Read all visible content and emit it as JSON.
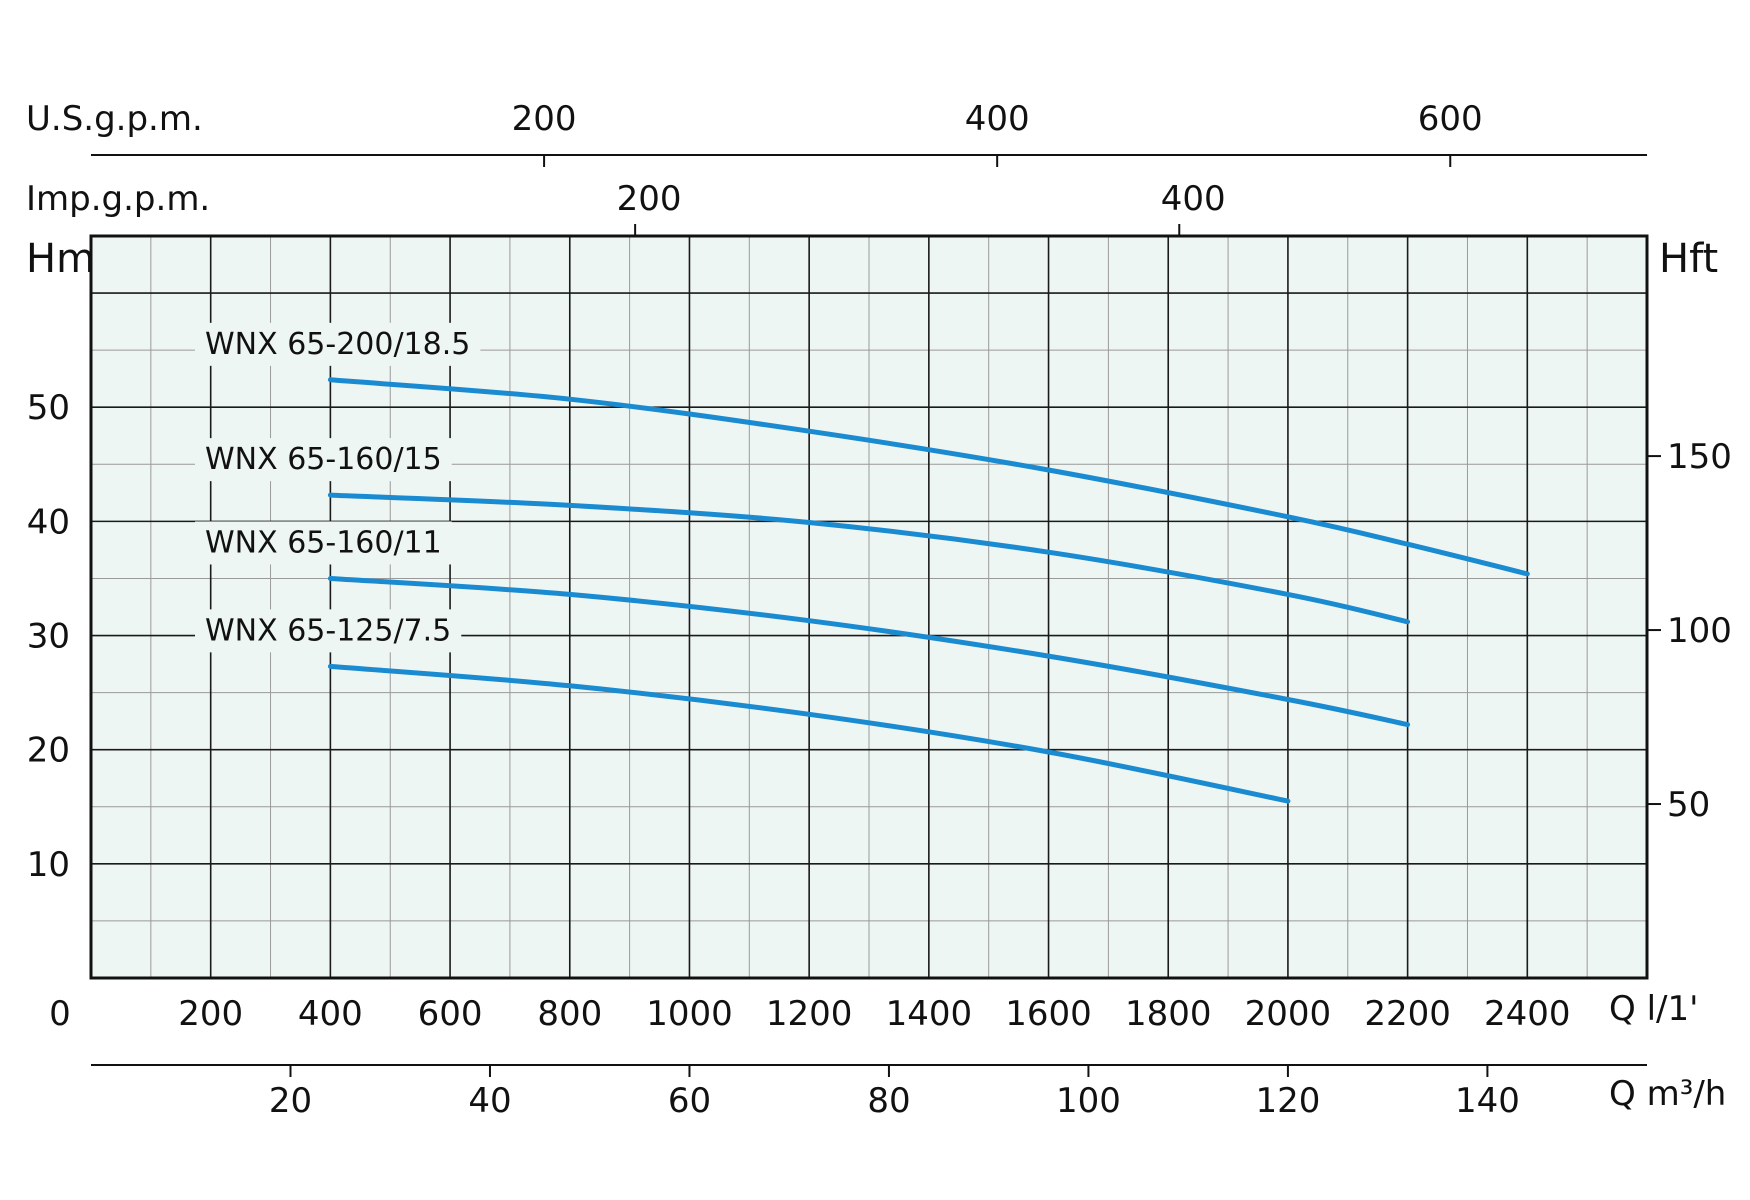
{
  "chart_data": {
    "type": "line",
    "x": {
      "label": "Q l/1'",
      "range": [
        0,
        2600
      ],
      "ticks": [
        0,
        200,
        400,
        600,
        800,
        1000,
        1200,
        1400,
        1600,
        1800,
        2000,
        2200,
        2400
      ]
    },
    "y": {
      "label": "Hm",
      "range": [
        0,
        65
      ],
      "ticks": [
        10,
        20,
        30,
        40,
        50
      ]
    },
    "y_right": {
      "label": "Hft",
      "ticks": [
        50,
        100,
        150
      ]
    },
    "secondary_x": {
      "m3h": {
        "label": "Q m³/h",
        "ticks": [
          20,
          40,
          60,
          80,
          100,
          120,
          140
        ]
      },
      "imp_gpm": {
        "label": "Imp.g.p.m.",
        "ticks": [
          200,
          400
        ]
      },
      "us_gpm": {
        "label": "U.S.g.p.m.",
        "ticks": [
          200,
          400,
          600
        ]
      }
    },
    "grid": true,
    "colors": {
      "series": "#1b8bd1",
      "plot_bg": "#eef6f4",
      "grid_major": "#1a1a1a",
      "grid_minor": "#9a9a9a"
    },
    "series": [
      {
        "name": "WNX 65-200/18.5",
        "x": [
          400,
          800,
          1200,
          1600,
          2000,
          2200,
          2400
        ],
        "y": [
          52.4,
          50.7,
          47.9,
          44.5,
          40.4,
          38.0,
          35.4
        ]
      },
      {
        "name": "WNX 65-160/15",
        "x": [
          400,
          800,
          1200,
          1600,
          2000,
          2200
        ],
        "y": [
          42.3,
          41.4,
          39.9,
          37.3,
          33.6,
          31.2
        ]
      },
      {
        "name": "WNX 65-160/11",
        "x": [
          400,
          800,
          1200,
          1600,
          2000,
          2200
        ],
        "y": [
          35.0,
          33.6,
          31.3,
          28.2,
          24.4,
          22.2
        ]
      },
      {
        "name": "WNX 65-125/7.5",
        "x": [
          400,
          800,
          1200,
          1600,
          2000
        ],
        "y": [
          27.3,
          25.6,
          23.1,
          19.8,
          15.5
        ]
      }
    ]
  }
}
